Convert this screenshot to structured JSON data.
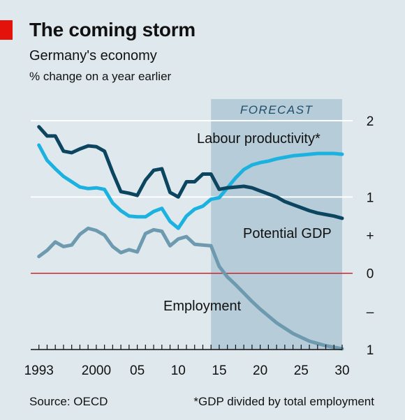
{
  "title": "The coming storm",
  "subtitle": "Germany's economy",
  "unit": "% change on a year earlier",
  "source": "Source: OECD",
  "footnote": "*GDP divided by total employment",
  "colors": {
    "background": "#dfe8ed",
    "forecast_shade": "#b6ccd8",
    "brand_red": "#e3120b",
    "labour_productivity": "#1bb2e0",
    "potential_gdp": "#0b4560",
    "employment": "#6e9aaf",
    "zero_line": "#cc1a1a"
  },
  "chart_data": {
    "type": "line",
    "forecast": {
      "label": "FORECAST",
      "from": 2014,
      "to": 2030
    },
    "x_ticks": [
      {
        "value": 1993,
        "label": "1993"
      },
      {
        "value": 2000,
        "label": "2000"
      },
      {
        "value": 2005,
        "label": "05"
      },
      {
        "value": 2010,
        "label": "10"
      },
      {
        "value": 2015,
        "label": "15"
      },
      {
        "value": 2020,
        "label": "20"
      },
      {
        "value": 2025,
        "label": "25"
      },
      {
        "value": 2030,
        "label": "30"
      }
    ],
    "xlim": [
      1992,
      2030
    ],
    "ylim": [
      -1,
      2
    ],
    "y_ticks": [
      {
        "value": 2,
        "label": "2"
      },
      {
        "value": 1,
        "label": "1"
      },
      {
        "value": 0.5,
        "label": "+"
      },
      {
        "value": 0,
        "label": "0"
      },
      {
        "value": -0.5,
        "label": "–"
      },
      {
        "value": -1,
        "label": "1"
      }
    ],
    "grid": "horizontal lines at 1 and 2",
    "series": [
      {
        "name": "Potential GDP",
        "color": "#0b4560",
        "x": [
          1993,
          1994,
          1995,
          1996,
          1997,
          1998,
          1999,
          2000,
          2001,
          2002,
          2003,
          2004,
          2005,
          2006,
          2007,
          2008,
          2009,
          2010,
          2011,
          2012,
          2013,
          2014,
          2015,
          2016,
          2017,
          2018,
          2019,
          2020,
          2021,
          2022,
          2023,
          2024,
          2025,
          2026,
          2027,
          2028,
          2029,
          2030
        ],
        "y": [
          1.92,
          1.8,
          1.8,
          1.6,
          1.58,
          1.63,
          1.67,
          1.66,
          1.6,
          1.32,
          1.07,
          1.05,
          1.02,
          1.22,
          1.35,
          1.37,
          1.06,
          1.0,
          1.2,
          1.2,
          1.3,
          1.3,
          1.1,
          1.12,
          1.13,
          1.14,
          1.12,
          1.08,
          1.04,
          1.0,
          0.94,
          0.9,
          0.86,
          0.82,
          0.79,
          0.77,
          0.75,
          0.72
        ]
      },
      {
        "name": "Labour productivity*",
        "color": "#1bb2e0",
        "x": [
          1993,
          1994,
          1995,
          1996,
          1997,
          1998,
          1999,
          2000,
          2001,
          2002,
          2003,
          2004,
          2005,
          2006,
          2007,
          2008,
          2009,
          2010,
          2011,
          2012,
          2013,
          2014,
          2015,
          2016,
          2017,
          2018,
          2019,
          2020,
          2021,
          2022,
          2023,
          2024,
          2025,
          2026,
          2027,
          2028,
          2029,
          2030
        ],
        "y": [
          1.68,
          1.48,
          1.37,
          1.27,
          1.2,
          1.13,
          1.11,
          1.12,
          1.1,
          0.92,
          0.82,
          0.75,
          0.74,
          0.74,
          0.81,
          0.85,
          0.68,
          0.59,
          0.75,
          0.84,
          0.88,
          0.97,
          0.99,
          1.12,
          1.25,
          1.36,
          1.42,
          1.45,
          1.47,
          1.5,
          1.52,
          1.54,
          1.55,
          1.56,
          1.57,
          1.57,
          1.57,
          1.56
        ]
      },
      {
        "name": "Employment",
        "color": "#6e9aaf",
        "x": [
          1993,
          1994,
          1995,
          1996,
          1997,
          1998,
          1999,
          2000,
          2001,
          2002,
          2003,
          2004,
          2005,
          2006,
          2007,
          2008,
          2009,
          2010,
          2011,
          2012,
          2013,
          2014,
          2015,
          2016,
          2017,
          2018,
          2019,
          2020,
          2021,
          2022,
          2023,
          2024,
          2025,
          2026,
          2027,
          2028,
          2029,
          2030
        ],
        "y": [
          0.22,
          0.3,
          0.41,
          0.35,
          0.37,
          0.51,
          0.59,
          0.56,
          0.5,
          0.35,
          0.27,
          0.31,
          0.28,
          0.52,
          0.57,
          0.55,
          0.36,
          0.45,
          0.48,
          0.38,
          0.37,
          0.36,
          0.09,
          -0.05,
          -0.15,
          -0.26,
          -0.37,
          -0.47,
          -0.56,
          -0.65,
          -0.72,
          -0.79,
          -0.84,
          -0.89,
          -0.92,
          -0.95,
          -0.97,
          -0.99
        ]
      }
    ],
    "annotations": [
      {
        "text": "Labour productivity*",
        "series": "Labour productivity*"
      },
      {
        "text": "Potential GDP",
        "series": "Potential GDP"
      },
      {
        "text": "Employment",
        "series": "Employment"
      }
    ]
  }
}
